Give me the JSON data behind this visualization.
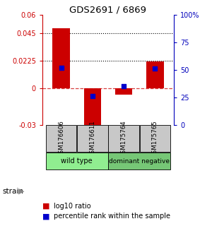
{
  "title": "GDS2691 / 6869",
  "samples": [
    "GSM176606",
    "GSM176611",
    "GSM175764",
    "GSM175765"
  ],
  "log10_ratio": [
    0.049,
    -0.033,
    -0.005,
    0.022
  ],
  "percentile_rank": [
    52,
    26,
    35,
    51
  ],
  "ylim_left": [
    -0.03,
    0.06
  ],
  "ylim_right": [
    0,
    100
  ],
  "yticks_left": [
    -0.03,
    0,
    0.0225,
    0.045,
    0.06
  ],
  "ytick_labels_left": [
    "-0.03",
    "0",
    "0.0225",
    "0.045",
    "0.06"
  ],
  "yticks_right": [
    0,
    25,
    50,
    75,
    100
  ],
  "ytick_labels_right": [
    "0",
    "25",
    "50",
    "75",
    "100%"
  ],
  "hlines_dotted": [
    0.0225,
    0.045
  ],
  "hline_dash": 0,
  "bar_color": "#CC0000",
  "dot_color": "#0000CC",
  "left_tick_color": "#CC0000",
  "right_tick_color": "#0000BB",
  "bg_color": "#ffffff",
  "plot_bg": "#ffffff",
  "wt_color": "#90EE90",
  "dn_color": "#76C776",
  "gsm_box_color": "#C8C8C8",
  "label_strain": "strain",
  "legend_red": "log10 ratio",
  "legend_blue": "percentile rank within the sample",
  "wt_label": "wild type",
  "dn_label": "dominant negative"
}
